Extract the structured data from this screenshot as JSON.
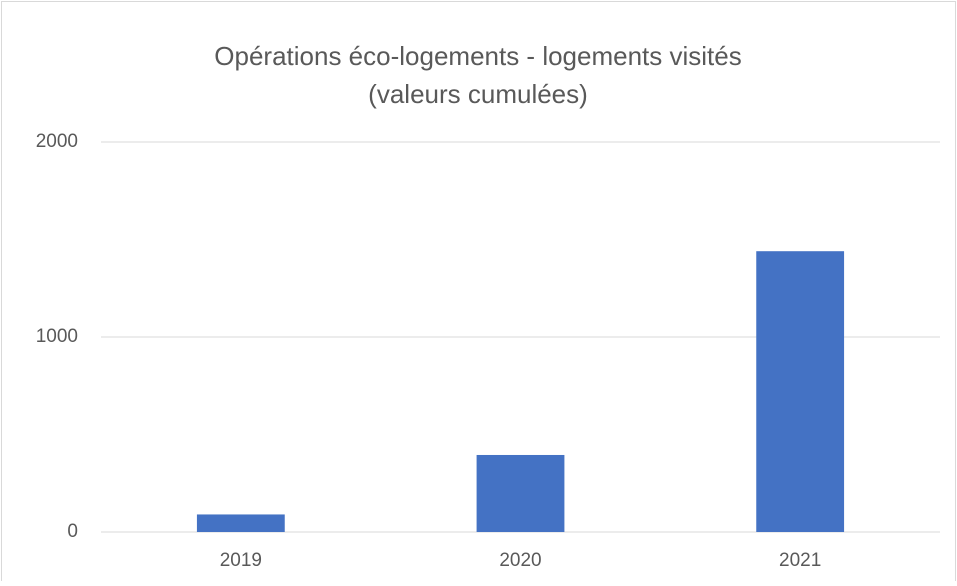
{
  "chart_data": {
    "type": "bar",
    "title": [
      "Opérations éco-logements - logements visités",
      "(valeurs cumulées)"
    ],
    "categories": [
      "2019",
      "2020",
      "2021"
    ],
    "values": [
      90,
      395,
      1440
    ],
    "color": "#4472c4",
    "ylim": [
      0,
      2000
    ],
    "yticks": [
      0,
      1000,
      2000
    ],
    "grid": true
  }
}
